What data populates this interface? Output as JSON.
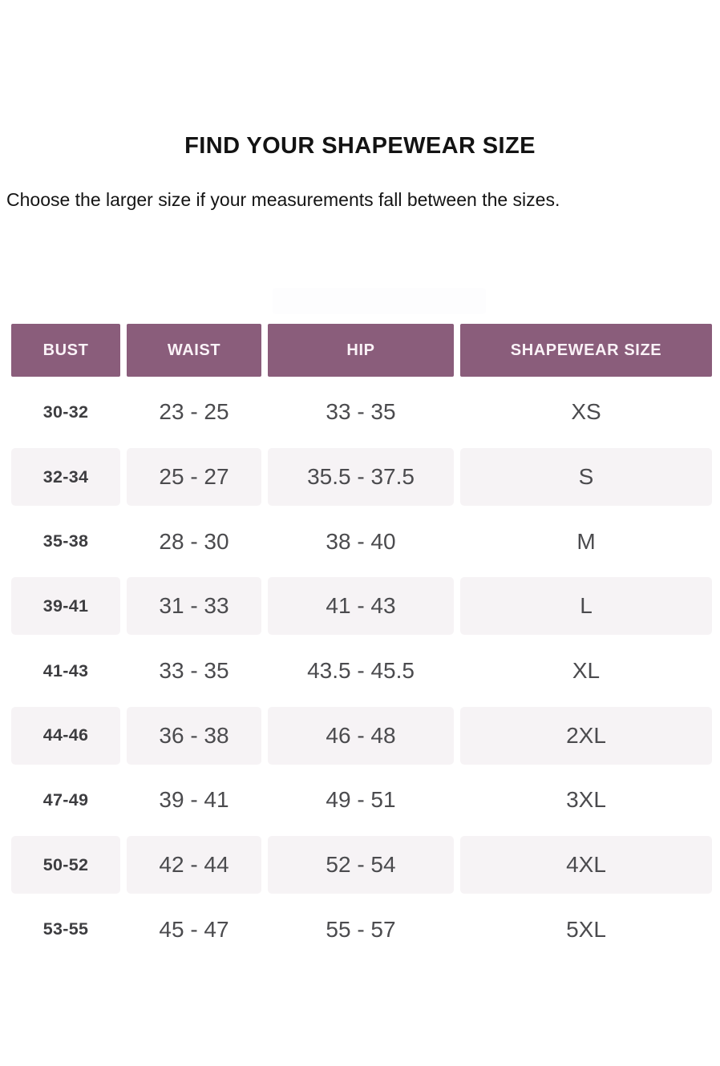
{
  "page": {
    "title": "FIND YOUR SHAPEWEAR SIZE",
    "subtitle": "Choose the larger size if your measurements fall between the sizes."
  },
  "colors": {
    "header_bg": "#8a5d7b",
    "header_text": "#faf2f7",
    "shaded_row_bg": "#f6f3f5",
    "data_text": "#4b4b4e",
    "bust_text": "#3d3d40",
    "title_text": "#131313",
    "background": "#ffffff"
  },
  "chart_data": {
    "type": "table",
    "title": "FIND YOUR SHAPEWEAR SIZE",
    "subtitle": "Choose the larger size if your measurements fall between the sizes.",
    "columns": [
      "BUST",
      "WAIST",
      "HIP",
      "SHAPEWEAR SIZE"
    ],
    "rows": [
      [
        "30-32",
        "23 - 25",
        "33 - 35",
        "XS"
      ],
      [
        "32-34",
        "25 - 27",
        "35.5 - 37.5",
        "S"
      ],
      [
        "35-38",
        "28 - 30",
        "38 - 40",
        "M"
      ],
      [
        "39-41",
        "31 - 33",
        "41 - 43",
        "L"
      ],
      [
        "41-43",
        "33 - 35",
        "43.5 - 45.5",
        "XL"
      ],
      [
        "44-46",
        "36 - 38",
        "46 - 48",
        "2XL"
      ],
      [
        "47-49",
        "39 - 41",
        "49 - 51",
        "3XL"
      ],
      [
        "50-52",
        "42 - 44",
        "52 - 54",
        "4XL"
      ],
      [
        "53-55",
        "45 - 47",
        "55 - 57",
        "5XL"
      ]
    ],
    "layout": {
      "row_striping": "alternating white and light shaded starting with white",
      "units": "inches (implied)",
      "grid": "off"
    }
  }
}
